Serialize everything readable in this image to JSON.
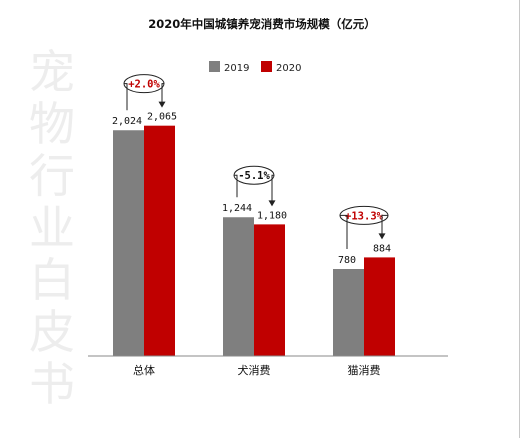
{
  "chart_data": {
    "type": "bar",
    "title": "2020年中国城镇养宠消费市场规模（亿元）",
    "categories": [
      "总体",
      "犬消费",
      "猫消费"
    ],
    "series": [
      {
        "name": "2019",
        "values": [
          2024,
          1244,
          780
        ],
        "labels": [
          "2,024",
          "1,244",
          "780"
        ],
        "color": "#7f7f7f"
      },
      {
        "name": "2020",
        "values": [
          2065,
          1180,
          884
        ],
        "labels": [
          "2,065",
          "1,180",
          "884"
        ],
        "color": "#c00000"
      }
    ],
    "changes": [
      {
        "label": "+2.0%",
        "color": "#c00000"
      },
      {
        "label": "-5.1%",
        "color": "#111111"
      },
      {
        "label": "+13.3%",
        "color": "#c00000"
      }
    ],
    "ylim": [
      0,
      2600
    ],
    "legend": "top-center",
    "grid": false
  },
  "watermark": [
    "宠",
    "物",
    "行",
    "业",
    "白",
    "皮",
    "书"
  ]
}
